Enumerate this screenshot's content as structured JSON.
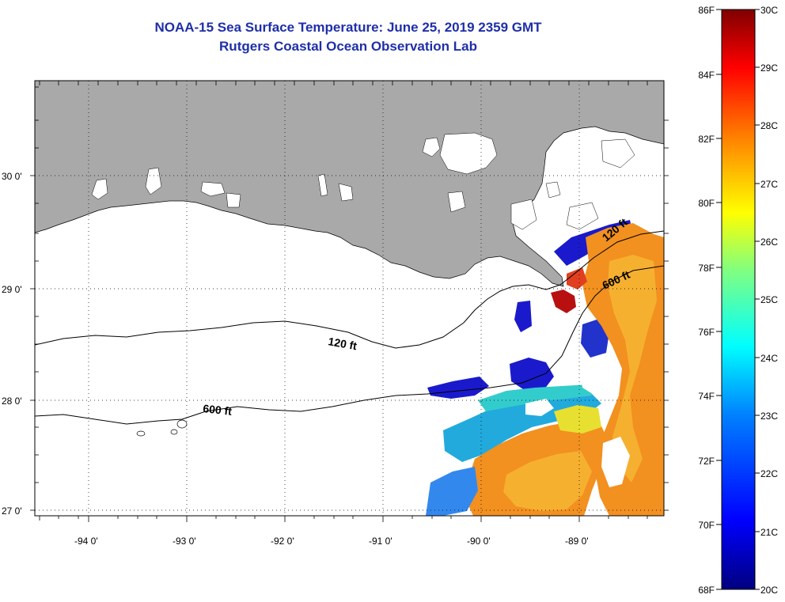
{
  "header": {
    "title": "NOAA-15 Sea Surface Temperature:  June 25, 2019 2359 GMT",
    "subtitle": "Rutgers Coastal Ocean Observation Lab"
  },
  "map": {
    "longitude_ticks": [
      "-94 0'",
      "-93 0'",
      "-92 0'",
      "-91 0'",
      "-90 0'",
      "-89 0'"
    ],
    "latitude_ticks": [
      "30 0'",
      "29 0'",
      "28 0'",
      "27 0'"
    ],
    "contour_labels": {
      "c120_left": "120 ft",
      "c600_left": "600 ft",
      "c120_right": "120 ft",
      "c600_right": "600 ft"
    },
    "land_color": "#a9a9a9",
    "water_color": "#ffffff"
  },
  "colorbar": {
    "fahrenheit": [
      "86F",
      "84F",
      "82F",
      "80F",
      "78F",
      "76F",
      "74F",
      "72F",
      "70F",
      "68F"
    ],
    "celsius": [
      "30C",
      "29C",
      "28C",
      "27C",
      "26C",
      "25C",
      "24C",
      "23C",
      "22C",
      "21C",
      "20C"
    ],
    "colors": [
      "#00007f",
      "#0000ff",
      "#0080ff",
      "#00ffff",
      "#80ff80",
      "#ffff00",
      "#ff8000",
      "#ff0000",
      "#7f0000"
    ]
  }
}
